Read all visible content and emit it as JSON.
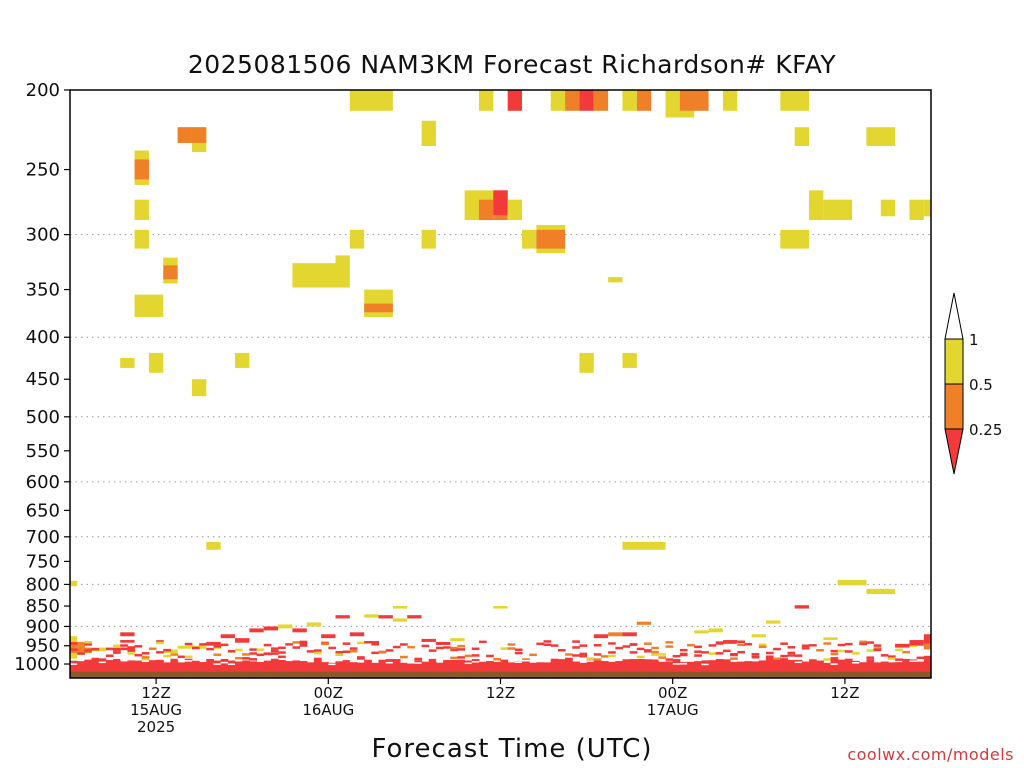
{
  "title": "2025081506 NAM3KM Forecast Richardson# KFAY",
  "xlabel": "Forecast Time (UTC)",
  "credit": "coolwx.com/models",
  "colors": {
    "yellow": "#e3d630",
    "orange": "#f08028",
    "red": "#f23a3a",
    "ground": "#8b5a2b",
    "grid": "#9a9a9a"
  },
  "chart_data": {
    "type": "heatmap",
    "title": "2025081506 NAM3KM Forecast Richardson# KFAY",
    "xlabel": "Forecast Time (UTC)",
    "ylabel": "",
    "x_units": "hours since 2025-08-15 06Z",
    "xlim": [
      0,
      60
    ],
    "ylim_hPa": [
      1040,
      200
    ],
    "y_scale": "log, inverted",
    "grid": true,
    "y_ticks": [
      200,
      250,
      300,
      350,
      400,
      450,
      500,
      550,
      600,
      650,
      700,
      750,
      800,
      850,
      900,
      950,
      1000
    ],
    "y_gridlines": [
      300,
      400,
      500,
      600,
      700,
      800,
      900
    ],
    "x_ticks": [
      {
        "x": 6,
        "lines": [
          "12Z",
          "15AUG",
          "2025"
        ]
      },
      {
        "x": 18,
        "lines": [
          "00Z",
          "16AUG"
        ]
      },
      {
        "x": 30,
        "lines": [
          "12Z"
        ]
      },
      {
        "x": 42,
        "lines": [
          "00Z",
          "17AUG"
        ]
      },
      {
        "x": 54,
        "lines": [
          "12Z"
        ]
      }
    ],
    "legend": {
      "placement": "right",
      "levels": [
        "1",
        "0.5",
        "0.25"
      ],
      "bins": [
        {
          "range": "0.5-1",
          "color": "yellow"
        },
        {
          "range": "0.25-0.5",
          "color": "orange"
        },
        {
          "range": "<0.25",
          "color": "red"
        }
      ]
    },
    "cells": [
      {
        "x0": 19.5,
        "x1": 22.5,
        "p0": 200,
        "p1": 212,
        "c": "y"
      },
      {
        "x0": 28.5,
        "x1": 29.5,
        "p0": 200,
        "p1": 212,
        "c": "y"
      },
      {
        "x0": 30.5,
        "x1": 31.5,
        "p0": 200,
        "p1": 212,
        "c": "r"
      },
      {
        "x0": 33.5,
        "x1": 34.5,
        "p0": 200,
        "p1": 212,
        "c": "y"
      },
      {
        "x0": 34.5,
        "x1": 35.5,
        "p0": 200,
        "p1": 212,
        "c": "o"
      },
      {
        "x0": 35.5,
        "x1": 36.5,
        "p0": 200,
        "p1": 212,
        "c": "r"
      },
      {
        "x0": 36.5,
        "x1": 37.5,
        "p0": 200,
        "p1": 212,
        "c": "o"
      },
      {
        "x0": 38.5,
        "x1": 39.5,
        "p0": 200,
        "p1": 212,
        "c": "y"
      },
      {
        "x0": 39.5,
        "x1": 40.5,
        "p0": 200,
        "p1": 212,
        "c": "o"
      },
      {
        "x0": 41.5,
        "x1": 42.5,
        "p0": 200,
        "p1": 212,
        "c": "y"
      },
      {
        "x0": 41.5,
        "x1": 43.5,
        "p0": 200,
        "p1": 216,
        "c": "y"
      },
      {
        "x0": 42.5,
        "x1": 44.5,
        "p0": 200,
        "p1": 212,
        "c": "o"
      },
      {
        "x0": 45.5,
        "x1": 46.5,
        "p0": 200,
        "p1": 212,
        "c": "y"
      },
      {
        "x0": 49.5,
        "x1": 51.5,
        "p0": 200,
        "p1": 212,
        "c": "y"
      },
      {
        "x0": 7.5,
        "x1": 8.5,
        "p0": 222,
        "p1": 232,
        "c": "y"
      },
      {
        "x0": 7.5,
        "x1": 8.5,
        "p0": 222,
        "p1": 232,
        "c": "o"
      },
      {
        "x0": 8.5,
        "x1": 9.5,
        "p0": 222,
        "p1": 238,
        "c": "y"
      },
      {
        "x0": 8.5,
        "x1": 9.5,
        "p0": 222,
        "p1": 232,
        "c": "o"
      },
      {
        "x0": 24.5,
        "x1": 25.5,
        "p0": 218,
        "p1": 234,
        "c": "y"
      },
      {
        "x0": 50.5,
        "x1": 51.5,
        "p0": 222,
        "p1": 234,
        "c": "y"
      },
      {
        "x0": 55.5,
        "x1": 57.5,
        "p0": 222,
        "p1": 234,
        "c": "y"
      },
      {
        "x0": 4.5,
        "x1": 5.5,
        "p0": 237,
        "p1": 261,
        "c": "y"
      },
      {
        "x0": 4.5,
        "x1": 5.5,
        "p0": 243,
        "p1": 257,
        "c": "o"
      },
      {
        "x0": 27.5,
        "x1": 29.5,
        "p0": 265,
        "p1": 288,
        "c": "y"
      },
      {
        "x0": 28.5,
        "x1": 29.5,
        "p0": 272,
        "p1": 288,
        "c": "o"
      },
      {
        "x0": 29.5,
        "x1": 30.5,
        "p0": 265,
        "p1": 288,
        "c": "o"
      },
      {
        "x0": 29.5,
        "x1": 30.5,
        "p0": 265,
        "p1": 284,
        "c": "r"
      },
      {
        "x0": 30.5,
        "x1": 31.5,
        "p0": 272,
        "p1": 288,
        "c": "y"
      },
      {
        "x0": 4.5,
        "x1": 5.5,
        "p0": 272,
        "p1": 288,
        "c": "y"
      },
      {
        "x0": 51.5,
        "x1": 52.5,
        "p0": 265,
        "p1": 288,
        "c": "y"
      },
      {
        "x0": 52.5,
        "x1": 54.5,
        "p0": 272,
        "p1": 288,
        "c": "y"
      },
      {
        "x0": 56.5,
        "x1": 57.5,
        "p0": 272,
        "p1": 285,
        "c": "y"
      },
      {
        "x0": 58.5,
        "x1": 59.5,
        "p0": 272,
        "p1": 288,
        "c": "y"
      },
      {
        "x0": 59.5,
        "x1": 60,
        "p0": 272,
        "p1": 285,
        "c": "y"
      },
      {
        "x0": 4.5,
        "x1": 5.5,
        "p0": 296,
        "p1": 312,
        "c": "y"
      },
      {
        "x0": 19.5,
        "x1": 20.5,
        "p0": 296,
        "p1": 312,
        "c": "y"
      },
      {
        "x0": 24.5,
        "x1": 25.5,
        "p0": 296,
        "p1": 312,
        "c": "y"
      },
      {
        "x0": 31.5,
        "x1": 32.5,
        "p0": 296,
        "p1": 312,
        "c": "y"
      },
      {
        "x0": 32.5,
        "x1": 34.5,
        "p0": 292,
        "p1": 316,
        "c": "y"
      },
      {
        "x0": 32.5,
        "x1": 34.5,
        "p0": 296,
        "p1": 312,
        "c": "o"
      },
      {
        "x0": 49.5,
        "x1": 51.5,
        "p0": 296,
        "p1": 312,
        "c": "y"
      },
      {
        "x0": 6.5,
        "x1": 7.5,
        "p0": 320,
        "p1": 344,
        "c": "y"
      },
      {
        "x0": 6.5,
        "x1": 7.5,
        "p0": 327,
        "p1": 340,
        "c": "o"
      },
      {
        "x0": 15.5,
        "x1": 18.5,
        "p0": 325,
        "p1": 348,
        "c": "y"
      },
      {
        "x0": 18.5,
        "x1": 19.5,
        "p0": 318,
        "p1": 348,
        "c": "y"
      },
      {
        "x0": 37.5,
        "x1": 38.5,
        "p0": 338,
        "p1": 343,
        "c": "y"
      },
      {
        "x0": 4.5,
        "x1": 6.5,
        "p0": 355,
        "p1": 378,
        "c": "y"
      },
      {
        "x0": 20.5,
        "x1": 22.5,
        "p0": 350,
        "p1": 378,
        "c": "y"
      },
      {
        "x0": 20.5,
        "x1": 22.5,
        "p0": 364,
        "p1": 373,
        "c": "o"
      },
      {
        "x0": 3.5,
        "x1": 4.5,
        "p0": 424,
        "p1": 436,
        "c": "y"
      },
      {
        "x0": 5.5,
        "x1": 6.5,
        "p0": 418,
        "p1": 442,
        "c": "y"
      },
      {
        "x0": 11.5,
        "x1": 12.5,
        "p0": 418,
        "p1": 436,
        "c": "y"
      },
      {
        "x0": 8.5,
        "x1": 9.5,
        "p0": 450,
        "p1": 472,
        "c": "y"
      },
      {
        "x0": 35.5,
        "x1": 36.5,
        "p0": 418,
        "p1": 442,
        "c": "y"
      },
      {
        "x0": 38.5,
        "x1": 39.5,
        "p0": 418,
        "p1": 436,
        "c": "y"
      },
      {
        "x0": 9.5,
        "x1": 10.5,
        "p0": 710,
        "p1": 726,
        "c": "y"
      },
      {
        "x0": 38.5,
        "x1": 41.5,
        "p0": 710,
        "p1": 726,
        "c": "y"
      },
      {
        "x0": 0,
        "x1": 0.5,
        "p0": 792,
        "p1": 804,
        "c": "y"
      },
      {
        "x0": 53.5,
        "x1": 55.5,
        "p0": 790,
        "p1": 802,
        "c": "y"
      },
      {
        "x0": 55.5,
        "x1": 57.5,
        "p0": 810,
        "p1": 822,
        "c": "y"
      },
      {
        "x0": 29.5,
        "x1": 30.5,
        "p0": 850,
        "p1": 856,
        "c": "y"
      },
      {
        "x0": 22.5,
        "x1": 23.5,
        "p0": 850,
        "p1": 856,
        "c": "y"
      },
      {
        "x0": 50.5,
        "x1": 51.5,
        "p0": 848,
        "p1": 856,
        "c": "r"
      },
      {
        "x0": 0,
        "x1": 0.5,
        "p0": 925,
        "p1": 985,
        "c": "y"
      },
      {
        "x0": 0,
        "x1": 0.5,
        "p0": 940,
        "p1": 970,
        "c": "o"
      },
      {
        "x0": 0.5,
        "x1": 1.5,
        "p0": 940,
        "p1": 950,
        "c": "o"
      },
      {
        "x0": 0.5,
        "x1": 1.5,
        "p0": 955,
        "p1": 970,
        "c": "o"
      },
      {
        "x0": 1.5,
        "x1": 2.5,
        "p0": 955,
        "p1": 965,
        "c": "y"
      },
      {
        "x0": 2.5,
        "x1": 3.5,
        "p0": 955,
        "p1": 962,
        "c": "r"
      },
      {
        "x0": 3.5,
        "x1": 4.5,
        "p0": 915,
        "p1": 925,
        "c": "r"
      },
      {
        "x0": 3.5,
        "x1": 4.5,
        "p0": 935,
        "p1": 942,
        "c": "r"
      },
      {
        "x0": 3.5,
        "x1": 4.5,
        "p0": 955,
        "p1": 962,
        "c": "r"
      },
      {
        "x0": 6.5,
        "x1": 7.5,
        "p0": 960,
        "p1": 970,
        "c": "y"
      },
      {
        "x0": 7.5,
        "x1": 8.5,
        "p0": 950,
        "p1": 958,
        "c": "y"
      },
      {
        "x0": 8.5,
        "x1": 9.5,
        "p0": 950,
        "p1": 958,
        "c": "y"
      },
      {
        "x0": 9.5,
        "x1": 10.5,
        "p0": 940,
        "p1": 950,
        "c": "r"
      },
      {
        "x0": 10.5,
        "x1": 11.5,
        "p0": 920,
        "p1": 930,
        "c": "r"
      },
      {
        "x0": 11.5,
        "x1": 12.5,
        "p0": 930,
        "p1": 942,
        "c": "r"
      },
      {
        "x0": 12.5,
        "x1": 13.5,
        "p0": 905,
        "p1": 915,
        "c": "r"
      },
      {
        "x0": 13.5,
        "x1": 14.5,
        "p0": 900,
        "p1": 910,
        "c": "r"
      },
      {
        "x0": 14.5,
        "x1": 15.5,
        "p0": 895,
        "p1": 905,
        "c": "y"
      },
      {
        "x0": 15.5,
        "x1": 16.5,
        "p0": 905,
        "p1": 915,
        "c": "r"
      },
      {
        "x0": 16.5,
        "x1": 17.5,
        "p0": 890,
        "p1": 900,
        "c": "y"
      },
      {
        "x0": 17.5,
        "x1": 18.5,
        "p0": 920,
        "p1": 930,
        "c": "r"
      },
      {
        "x0": 18.5,
        "x1": 19.5,
        "p0": 872,
        "p1": 880,
        "c": "r"
      },
      {
        "x0": 19.5,
        "x1": 20.5,
        "p0": 915,
        "p1": 925,
        "c": "r"
      },
      {
        "x0": 20.5,
        "x1": 21.5,
        "p0": 870,
        "p1": 878,
        "c": "y"
      },
      {
        "x0": 21.5,
        "x1": 22.5,
        "p0": 872,
        "p1": 880,
        "c": "r"
      },
      {
        "x0": 22.5,
        "x1": 23.5,
        "p0": 880,
        "p1": 888,
        "c": "y"
      },
      {
        "x0": 23.5,
        "x1": 24.5,
        "p0": 872,
        "p1": 880,
        "c": "r"
      },
      {
        "x0": 24.5,
        "x1": 25.5,
        "p0": 932,
        "p1": 940,
        "c": "r"
      },
      {
        "x0": 25.5,
        "x1": 26.5,
        "p0": 940,
        "p1": 948,
        "c": "r"
      },
      {
        "x0": 26.5,
        "x1": 27.5,
        "p0": 930,
        "p1": 938,
        "c": "y"
      },
      {
        "x0": 36.5,
        "x1": 37.5,
        "p0": 920,
        "p1": 930,
        "c": "r"
      },
      {
        "x0": 37.5,
        "x1": 38.5,
        "p0": 915,
        "p1": 925,
        "c": "o"
      },
      {
        "x0": 38.5,
        "x1": 39.5,
        "p0": 915,
        "p1": 925,
        "c": "r"
      },
      {
        "x0": 39.5,
        "x1": 40.5,
        "p0": 888,
        "p1": 896,
        "c": "o"
      },
      {
        "x0": 43.5,
        "x1": 44.5,
        "p0": 910,
        "p1": 918,
        "c": "y"
      },
      {
        "x0": 44.5,
        "x1": 45.5,
        "p0": 905,
        "p1": 915,
        "c": "y"
      },
      {
        "x0": 45.5,
        "x1": 46.5,
        "p0": 935,
        "p1": 945,
        "c": "r"
      },
      {
        "x0": 47.5,
        "x1": 48.5,
        "p0": 920,
        "p1": 928,
        "c": "y"
      },
      {
        "x0": 48.5,
        "x1": 49.5,
        "p0": 885,
        "p1": 893,
        "c": "y"
      },
      {
        "x0": 52.5,
        "x1": 53.5,
        "p0": 928,
        "p1": 935,
        "c": "y"
      },
      {
        "x0": 57.5,
        "x1": 58.5,
        "p0": 945,
        "p1": 955,
        "c": "r"
      },
      {
        "x0": 58.5,
        "x1": 59.5,
        "p0": 935,
        "p1": 950,
        "c": "r"
      },
      {
        "x0": 59.5,
        "x1": 60,
        "p0": 920,
        "p1": 945,
        "c": "r"
      },
      {
        "x0": 59.5,
        "x1": 60,
        "p0": 945,
        "p1": 955,
        "c": "o"
      }
    ]
  }
}
